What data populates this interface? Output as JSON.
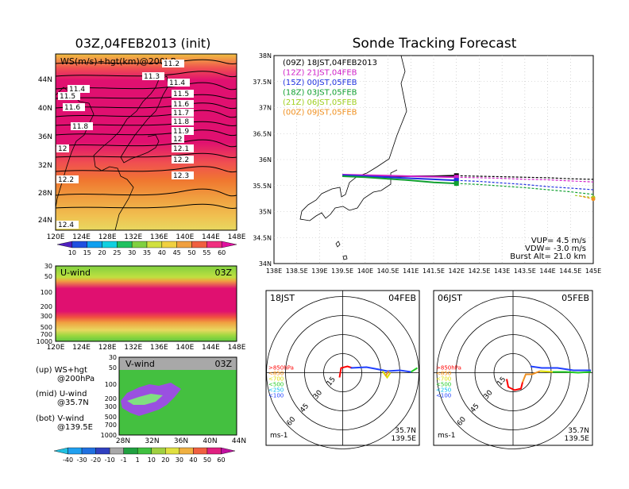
{
  "left": {
    "title": "03Z,04FEB2013 (init)",
    "top_panel": {
      "label": "WS(m/s)+hgt(km)@200hPa",
      "contour_labels": [
        "11.2",
        "11.3",
        "11.4",
        "11.4",
        "11.5",
        "11.5",
        "11.6",
        "11.6",
        "11.7",
        "11.8",
        "11.8",
        "11.9",
        "12",
        "12",
        "12.1",
        "12.2",
        "12.2",
        "12.3",
        "12.4"
      ],
      "lon_ticks": [
        "120E",
        "124E",
        "128E",
        "132E",
        "136E",
        "140E",
        "144E",
        "148E"
      ],
      "lat_ticks": [
        "44N",
        "40N",
        "36N",
        "32N",
        "28N",
        "24N"
      ]
    },
    "ws_colorbar": [
      "10",
      "15",
      "20",
      "25",
      "30",
      "35",
      "40",
      "45",
      "50",
      "55",
      "60"
    ],
    "mid_panel": {
      "label": "U-wind",
      "time": "03Z",
      "p_ticks": [
        "30",
        "50",
        "100",
        "200",
        "300",
        "500",
        "700",
        "1000"
      ],
      "lon_ticks": [
        "120E",
        "124E",
        "128E",
        "132E",
        "136E",
        "140E",
        "144E",
        "148E"
      ]
    },
    "bot_panel": {
      "label": "V-wind",
      "time": "03Z",
      "p_ticks": [
        "30",
        "50",
        "100",
        "200",
        "300",
        "500",
        "700",
        "1000"
      ],
      "lat_ticks": [
        "28N",
        "32N",
        "36N",
        "40N",
        "44N"
      ]
    },
    "legend": {
      "up1": "(up) WS+hgt",
      "up2": "@200hPa",
      "mid1": "(mid) U-wind",
      "mid2": "@35.7N",
      "bot1": "(bot) V-wind",
      "bot2": "@139.5E"
    },
    "wind_colorbar": [
      "-40",
      "-30",
      "-20",
      "-10",
      "-1",
      "1",
      "10",
      "20",
      "30",
      "40",
      "50",
      "60"
    ]
  },
  "right": {
    "title": "Sonde Tracking Forecast",
    "chart_data": {
      "type": "line",
      "x_ticks": [
        "138E",
        "138.5E",
        "139E",
        "139.5E",
        "140E",
        "140.5E",
        "141E",
        "141.5E",
        "142E",
        "142.5E",
        "143E",
        "143.5E",
        "144E",
        "144.5E",
        "145E"
      ],
      "y_ticks": [
        "38N",
        "37.5N",
        "37N",
        "36.5N",
        "36N",
        "35.5N",
        "35N",
        "34.5N",
        "34N"
      ],
      "xlim": [
        138,
        145
      ],
      "ylim": [
        34,
        38
      ],
      "legend_placement": "top-left",
      "series": [
        {
          "name": "(09Z) 18JST,04FEB2013",
          "color": "#000000",
          "x": [
            139.5,
            140,
            140.5,
            141,
            141.5,
            142,
            142.5,
            143,
            143.5,
            144,
            144.5,
            145
          ],
          "y": [
            35.7,
            35.69,
            35.68,
            35.68,
            35.68,
            35.69,
            35.68,
            35.67,
            35.66,
            35.65,
            35.63,
            35.62
          ]
        },
        {
          "name": "(12Z) 21JST,04FEB",
          "color": "#d020c8",
          "x": [
            139.5,
            140,
            140.5,
            141,
            141.5,
            142,
            142.5,
            143,
            143.5,
            144,
            144.5,
            145
          ],
          "y": [
            35.71,
            35.7,
            35.69,
            35.68,
            35.67,
            35.66,
            35.65,
            35.64,
            35.62,
            35.61,
            35.59,
            35.57
          ]
        },
        {
          "name": "(15Z) 00JST,05FEB",
          "color": "#2030e0",
          "x": [
            139.5,
            140,
            140.5,
            141,
            141.5,
            142,
            142.5,
            143,
            143.5,
            144,
            144.5,
            145
          ],
          "y": [
            35.7,
            35.68,
            35.66,
            35.64,
            35.62,
            35.6,
            35.58,
            35.55,
            35.52,
            35.48,
            35.45,
            35.42
          ]
        },
        {
          "name": "(18Z) 03JST,05FEB",
          "color": "#10a030",
          "x": [
            139.5,
            140,
            140.5,
            141,
            141.5,
            142,
            142.5,
            143,
            143.5,
            144,
            144.5,
            145
          ],
          "y": [
            35.68,
            35.66,
            35.63,
            35.6,
            35.56,
            35.54,
            35.52,
            35.49,
            35.46,
            35.42,
            35.38,
            35.33
          ]
        },
        {
          "name": "(21Z) 06JST,05FEB",
          "color": "#a0d020",
          "x": [
            144.6,
            144.8,
            145
          ],
          "y": [
            35.31,
            35.29,
            35.27
          ]
        },
        {
          "name": "(00Z) 09JST,05FEB",
          "color": "#f09020",
          "x": [
            144.7,
            144.85,
            145
          ],
          "y": [
            35.3,
            35.27,
            35.24
          ]
        }
      ],
      "annotations": [
        "VUP= 4.5 m/s",
        "VDW= -3.0 m/s",
        "Burst Alt= 21.0 km"
      ]
    },
    "hodo1": {
      "time": "18JST",
      "date": "04FEB",
      "rings": [
        "15",
        "30",
        "45",
        "60"
      ],
      "levels": [
        ">850hPa",
        "<850",
        "<700",
        "<500",
        "<250",
        "<100"
      ],
      "level_colors": [
        "#ff0000",
        "#ff8c00",
        "#dddd00",
        "#22cc22",
        "#00bbee",
        "#2040ff"
      ],
      "loc1": "35.7N",
      "loc2": "139.5E",
      "unit": "ms-1"
    },
    "hodo2": {
      "time": "06JST",
      "date": "05FEB",
      "rings": [
        "15",
        "30",
        "45",
        "60"
      ],
      "levels": [
        ">850hPa",
        "<850",
        "<700",
        "<500",
        "<250",
        "<100"
      ],
      "level_colors": [
        "#ff0000",
        "#ff8c00",
        "#dddd00",
        "#22cc22",
        "#00bbee",
        "#2040ff"
      ],
      "loc1": "35.7N",
      "loc2": "139.5E",
      "unit": "ms-1"
    }
  }
}
